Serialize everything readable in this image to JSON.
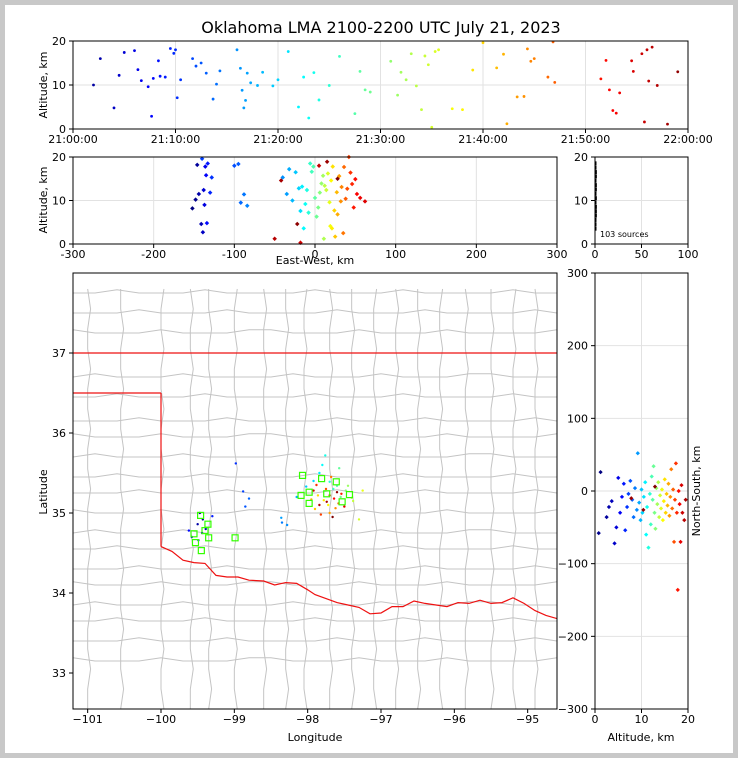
{
  "title": "Oklahoma LMA 2100-2200 UTC July 21, 2023",
  "colors": {
    "county": "#c4c4c4",
    "state": "#ee1111",
    "station": "#33ff00",
    "grid": "#e2e2e2",
    "sources_marker": "#000000"
  },
  "source_count_label": "103 sources",
  "chart_data": [
    {
      "type": "scatter",
      "panel": "time-altitude",
      "xlabel": "",
      "ylabel": "Altitude, km",
      "xlim": [
        "21:00:00",
        "22:00:00"
      ],
      "ylim": [
        0,
        20
      ],
      "xticks": [
        "21:00:00",
        "21:10:00",
        "21:20:00",
        "21:30:00",
        "21:40:00",
        "21:50:00",
        "22:00:00"
      ],
      "yticks": [
        0,
        10,
        20
      ],
      "points": [
        [
          "21:02:00",
          10.0
        ],
        [
          "21:02:40",
          16.0
        ],
        [
          "21:04:00",
          4.8
        ],
        [
          "21:04:30",
          12.2
        ],
        [
          "21:05:00",
          17.4
        ],
        [
          "21:06:00",
          17.8
        ],
        [
          "21:06:20",
          13.5
        ],
        [
          "21:06:40",
          11.0
        ],
        [
          "21:07:20",
          9.6
        ],
        [
          "21:07:40",
          2.9
        ],
        [
          "21:07:50",
          11.5
        ],
        [
          "21:08:20",
          15.5
        ],
        [
          "21:08:30",
          12.0
        ],
        [
          "21:09:00",
          11.8
        ],
        [
          "21:09:30",
          18.3
        ],
        [
          "21:09:50",
          17.2
        ],
        [
          "21:10:00",
          18.0
        ],
        [
          "21:10:10",
          7.1
        ],
        [
          "21:10:30",
          11.2
        ],
        [
          "21:11:40",
          16.0
        ],
        [
          "21:12:00",
          14.3
        ],
        [
          "21:12:30",
          15.0
        ],
        [
          "21:13:00",
          12.7
        ],
        [
          "21:13:40",
          6.8
        ],
        [
          "21:14:00",
          10.2
        ],
        [
          "21:14:20",
          13.2
        ],
        [
          "21:16:00",
          18.0
        ],
        [
          "21:16:20",
          13.8
        ],
        [
          "21:16:30",
          8.8
        ],
        [
          "21:16:40",
          4.8
        ],
        [
          "21:16:50",
          6.5
        ],
        [
          "21:17:00",
          12.7
        ],
        [
          "21:17:20",
          10.5
        ],
        [
          "21:18:00",
          9.9
        ],
        [
          "21:18:30",
          12.9
        ],
        [
          "21:19:30",
          9.8
        ],
        [
          "21:20:00",
          11.2
        ],
        [
          "21:21:00",
          17.6
        ],
        [
          "21:22:00",
          5.0
        ],
        [
          "21:22:30",
          11.8
        ],
        [
          "21:23:00",
          2.5
        ],
        [
          "21:23:30",
          12.8
        ],
        [
          "21:24:00",
          6.6
        ],
        [
          "21:25:00",
          9.9
        ],
        [
          "21:26:00",
          16.5
        ],
        [
          "21:27:30",
          3.5
        ],
        [
          "21:28:00",
          13.1
        ],
        [
          "21:28:30",
          8.9
        ],
        [
          "21:29:00",
          8.4
        ],
        [
          "21:31:00",
          15.4
        ],
        [
          "21:31:40",
          7.7
        ],
        [
          "21:32:00",
          12.9
        ],
        [
          "21:32:30",
          11.2
        ],
        [
          "21:33:00",
          17.1
        ],
        [
          "21:33:30",
          9.8
        ],
        [
          "21:34:00",
          4.4
        ],
        [
          "21:34:20",
          16.6
        ],
        [
          "21:34:40",
          14.6
        ],
        [
          "21:35:00",
          0.4
        ],
        [
          "21:35:20",
          17.6
        ],
        [
          "21:35:40",
          18.0
        ],
        [
          "21:37:00",
          4.6
        ],
        [
          "21:38:00",
          4.4
        ],
        [
          "21:39:00",
          13.4
        ],
        [
          "21:40:00",
          19.6
        ],
        [
          "21:41:20",
          13.9
        ],
        [
          "21:42:00",
          17.0
        ],
        [
          "21:42:20",
          1.2
        ],
        [
          "21:43:20",
          7.3
        ],
        [
          "21:44:00",
          7.4
        ],
        [
          "21:44:20",
          18.2
        ],
        [
          "21:44:40",
          15.4
        ],
        [
          "21:45:00",
          16.0
        ],
        [
          "21:46:20",
          11.8
        ],
        [
          "21:46:50",
          19.8
        ],
        [
          "21:47:00",
          10.6
        ],
        [
          "21:51:30",
          11.4
        ],
        [
          "21:52:00",
          15.6
        ],
        [
          "21:52:20",
          8.9
        ],
        [
          "21:52:40",
          4.2
        ],
        [
          "21:53:00",
          3.6
        ],
        [
          "21:53:20",
          8.2
        ],
        [
          "21:54:30",
          15.5
        ],
        [
          "21:54:40",
          13.1
        ],
        [
          "21:55:30",
          17.1
        ],
        [
          "21:55:45",
          1.6
        ],
        [
          "21:56:00",
          18.0
        ],
        [
          "21:56:10",
          10.9
        ],
        [
          "21:56:30",
          18.6
        ],
        [
          "21:57:00",
          9.9
        ],
        [
          "21:58:00",
          1.1
        ],
        [
          "21:59:00",
          13.0
        ]
      ]
    },
    {
      "type": "scatter",
      "panel": "east-west-altitude",
      "xlabel": "East-West, km",
      "ylabel": "Altitude, km",
      "xlim": [
        -300,
        300
      ],
      "ylim": [
        0,
        20
      ],
      "xticks": [
        -300,
        -200,
        -100,
        0,
        100,
        200,
        300
      ],
      "yticks": [
        0,
        10,
        20
      ],
      "points": [
        [
          -152,
          8.2
        ],
        [
          -148,
          10.2
        ],
        [
          -146,
          18.2
        ],
        [
          -144,
          11.5
        ],
        [
          -141,
          4.6
        ],
        [
          -139,
          2.7
        ],
        [
          -138,
          12.4
        ],
        [
          -137,
          9.0
        ],
        [
          -136,
          17.8
        ],
        [
          -135,
          15.8
        ],
        [
          -134,
          4.8
        ],
        [
          -133,
          18.5
        ],
        [
          -130,
          11.8
        ],
        [
          -128,
          15.3
        ],
        [
          -140,
          19.6
        ],
        [
          -100,
          18.0
        ],
        [
          -95,
          18.4
        ],
        [
          -92,
          9.5
        ],
        [
          -88,
          11.4
        ],
        [
          -84,
          8.8
        ],
        [
          -40,
          15.3
        ],
        [
          -35,
          11.5
        ],
        [
          -32,
          17.2
        ],
        [
          -28,
          10.0
        ],
        [
          -24,
          16.5
        ],
        [
          -20,
          12.8
        ],
        [
          -18,
          7.6
        ],
        [
          -16,
          13.2
        ],
        [
          -14,
          3.6
        ],
        [
          -12,
          9.2
        ],
        [
          -10,
          12.4
        ],
        [
          -8,
          7.2
        ],
        [
          -6,
          18.5
        ],
        [
          -4,
          16.6
        ],
        [
          -2,
          17.8
        ],
        [
          0,
          10.6
        ],
        [
          2,
          6.3
        ],
        [
          4,
          8.4
        ],
        [
          6,
          11.8
        ],
        [
          8,
          13.9
        ],
        [
          10,
          15.7
        ],
        [
          11,
          1.2
        ],
        [
          12,
          13.4
        ],
        [
          14,
          12.4
        ],
        [
          16,
          16.2
        ],
        [
          18,
          9.6
        ],
        [
          19,
          4.1
        ],
        [
          20,
          14.6
        ],
        [
          21,
          3.6
        ],
        [
          22,
          17.8
        ],
        [
          24,
          7.7
        ],
        [
          25,
          1.7
        ],
        [
          27,
          11.9
        ],
        [
          28,
          6.8
        ],
        [
          30,
          15.6
        ],
        [
          32,
          9.8
        ],
        [
          33,
          13.1
        ],
        [
          35,
          2.5
        ],
        [
          36,
          17.7
        ],
        [
          38,
          10.4
        ],
        [
          40,
          12.7
        ],
        [
          42,
          20.0
        ],
        [
          44,
          16.4
        ],
        [
          46,
          13.8
        ],
        [
          48,
          8.4
        ],
        [
          50,
          14.9
        ],
        [
          52,
          11.5
        ],
        [
          56,
          10.6
        ],
        [
          62,
          9.8
        ],
        [
          -18,
          0.3
        ],
        [
          5,
          18.0
        ],
        [
          -50,
          1.2
        ],
        [
          -42,
          14.6
        ],
        [
          15,
          18.9
        ],
        [
          -22,
          4.6
        ],
        [
          28,
          15.0
        ]
      ]
    },
    {
      "type": "histogram",
      "panel": "altitude-histogram",
      "xlabel": "",
      "ylabel": "",
      "xlim": [
        0,
        100
      ],
      "ylim": [
        0,
        20
      ],
      "xticks": [
        0,
        50,
        100
      ],
      "yticks": [
        0,
        10,
        20
      ],
      "bin_counts": [
        0,
        0,
        0,
        1,
        1,
        1,
        2,
        2,
        2,
        1,
        2,
        1,
        2,
        2,
        1,
        2,
        2,
        1,
        1,
        0
      ]
    },
    {
      "type": "map",
      "panel": "plan-view",
      "xlabel": "Longitude",
      "ylabel": "Latitude",
      "xlim": [
        -101.2,
        -94.6
      ],
      "ylim": [
        32.55,
        38.0
      ],
      "xticks": [
        -101,
        -100,
        -99,
        -98,
        -97,
        -96,
        -95
      ],
      "yticks": [
        33,
        34,
        35,
        36,
        37
      ],
      "stations": [
        [
          -99.46,
          34.97
        ],
        [
          -99.36,
          34.86
        ],
        [
          -99.55,
          34.74
        ],
        [
          -99.4,
          34.78
        ],
        [
          -99.35,
          34.69
        ],
        [
          -99.53,
          34.63
        ],
        [
          -99.45,
          34.53
        ],
        [
          -98.99,
          34.69
        ],
        [
          -98.07,
          35.47
        ],
        [
          -97.81,
          35.43
        ],
        [
          -98.09,
          35.22
        ],
        [
          -97.98,
          35.26
        ],
        [
          -97.61,
          35.39
        ],
        [
          -97.74,
          35.24
        ],
        [
          -97.53,
          35.14
        ],
        [
          -97.43,
          35.23
        ],
        [
          -97.98,
          35.12
        ]
      ],
      "points": [
        [
          -99.47,
          35.0
        ],
        [
          -99.43,
          34.92
        ],
        [
          -99.5,
          34.86
        ],
        [
          -99.39,
          34.8
        ],
        [
          -99.44,
          34.75
        ],
        [
          -99.58,
          34.7
        ],
        [
          -99.49,
          34.66
        ],
        [
          -99.62,
          34.78
        ],
        [
          -99.3,
          34.96
        ],
        [
          -98.98,
          35.62
        ],
        [
          -98.88,
          35.27
        ],
        [
          -98.85,
          35.08
        ],
        [
          -98.8,
          35.18
        ],
        [
          -98.35,
          34.88
        ],
        [
          -98.28,
          34.85
        ],
        [
          -98.36,
          34.94
        ],
        [
          -98.15,
          35.2
        ],
        [
          -98.02,
          35.33
        ],
        [
          -97.92,
          35.4
        ],
        [
          -97.84,
          35.5
        ],
        [
          -97.8,
          35.6
        ],
        [
          -97.76,
          35.72
        ],
        [
          -97.7,
          35.39
        ],
        [
          -97.65,
          35.3
        ],
        [
          -97.6,
          35.34
        ],
        [
          -97.57,
          35.56
        ],
        [
          -97.55,
          35.2
        ],
        [
          -97.48,
          35.28
        ],
        [
          -97.45,
          35.34
        ],
        [
          -97.4,
          35.19
        ],
        [
          -97.38,
          35.15
        ],
        [
          -97.3,
          34.92
        ],
        [
          -97.25,
          35.28
        ],
        [
          -97.72,
          35.1
        ],
        [
          -97.78,
          35.16
        ],
        [
          -97.86,
          35.22
        ],
        [
          -97.9,
          35.05
        ],
        [
          -97.95,
          35.17
        ],
        [
          -97.7,
          35.0
        ],
        [
          -97.62,
          35.06
        ],
        [
          -97.68,
          35.45
        ],
        [
          -97.58,
          35.12
        ],
        [
          -97.75,
          35.3
        ],
        [
          -97.82,
          34.98
        ],
        [
          -97.88,
          35.35
        ],
        [
          -97.54,
          35.24
        ],
        [
          -97.64,
          35.18
        ],
        [
          -97.7,
          35.22
        ],
        [
          -97.5,
          35.08
        ],
        [
          -97.92,
          35.28
        ],
        [
          -97.84,
          35.1
        ],
        [
          -97.74,
          35.14
        ],
        [
          -97.6,
          35.26
        ],
        [
          -97.66,
          34.95
        ]
      ]
    },
    {
      "type": "scatter",
      "panel": "altitude-north-south",
      "xlabel": "Altitude, km",
      "ylabel": "North-South, km",
      "xlim": [
        0,
        20
      ],
      "ylim": [
        -300,
        300
      ],
      "xticks": [
        0,
        10,
        20
      ],
      "yticks": [
        -300,
        -200,
        -100,
        0,
        100,
        200,
        300
      ],
      "points": [
        [
          1.2,
          26
        ],
        [
          0.8,
          -58
        ],
        [
          2.5,
          -36
        ],
        [
          3.0,
          -22
        ],
        [
          3.6,
          -14
        ],
        [
          4.2,
          -72
        ],
        [
          4.6,
          -50
        ],
        [
          5.0,
          18
        ],
        [
          5.4,
          -30
        ],
        [
          5.8,
          -8
        ],
        [
          6.2,
          10
        ],
        [
          6.5,
          -54
        ],
        [
          6.9,
          -22
        ],
        [
          7.2,
          -4
        ],
        [
          7.6,
          14
        ],
        [
          8.0,
          -12
        ],
        [
          8.3,
          -36
        ],
        [
          8.6,
          4
        ],
        [
          9.0,
          -26
        ],
        [
          9.2,
          52
        ],
        [
          9.5,
          -16
        ],
        [
          9.8,
          -40
        ],
        [
          10.0,
          2
        ],
        [
          10.2,
          -30
        ],
        [
          10.5,
          -8
        ],
        [
          10.8,
          12
        ],
        [
          11.0,
          -60
        ],
        [
          11.2,
          -22
        ],
        [
          11.5,
          -78
        ],
        [
          11.8,
          -4
        ],
        [
          12.0,
          -46
        ],
        [
          12.2,
          20
        ],
        [
          12.4,
          -12
        ],
        [
          12.6,
          34
        ],
        [
          12.8,
          -30
        ],
        [
          13.0,
          -52
        ],
        [
          13.2,
          4
        ],
        [
          13.4,
          -18
        ],
        [
          13.6,
          12
        ],
        [
          13.8,
          -36
        ],
        [
          14.0,
          -6
        ],
        [
          14.2,
          -24
        ],
        [
          14.4,
          2
        ],
        [
          14.6,
          -40
        ],
        [
          14.8,
          -14
        ],
        [
          15.0,
          16
        ],
        [
          15.2,
          -30
        ],
        [
          15.4,
          -4
        ],
        [
          15.6,
          -20
        ],
        [
          15.8,
          10
        ],
        [
          16.0,
          -34
        ],
        [
          16.2,
          -8
        ],
        [
          16.4,
          30
        ],
        [
          16.6,
          -24
        ],
        [
          16.8,
          2
        ],
        [
          17.0,
          -70
        ],
        [
          17.2,
          -12
        ],
        [
          17.4,
          38
        ],
        [
          17.6,
          -30
        ],
        [
          17.8,
          -136
        ],
        [
          18.0,
          0
        ],
        [
          18.2,
          -18
        ],
        [
          18.4,
          -70
        ],
        [
          18.6,
          8
        ],
        [
          18.8,
          -30
        ],
        [
          19.2,
          -40
        ],
        [
          19.5,
          -12
        ],
        [
          7.8,
          -10
        ],
        [
          10.4,
          -26
        ],
        [
          12.9,
          6
        ]
      ]
    }
  ]
}
